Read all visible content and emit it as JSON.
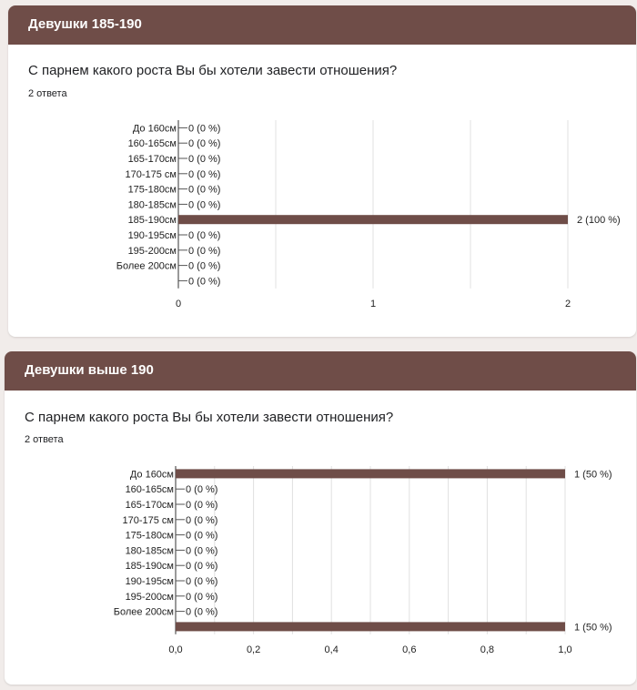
{
  "sections": [
    {
      "title": "Девушки 185-190",
      "question": "С парнем какого роста Вы бы хотели завести отношения?",
      "answers_count": "2 ответа"
    },
    {
      "title": "Девушки выше 190",
      "question": "С парнем какого роста Вы бы хотели завести отношения?",
      "answers_count": "2 ответа"
    }
  ],
  "colors": {
    "header": "#6f4d48",
    "bar": "#6f4d48",
    "grid": "#e0e0e0",
    "background": "#f1ecea"
  },
  "chart_data": [
    {
      "type": "bar",
      "orientation": "horizontal",
      "categories": [
        "До 160см",
        "160-165см",
        "165-170см",
        "170-175 см",
        "175-180см",
        "180-185см",
        "185-190см",
        "190-195см",
        "195-200см",
        "Более 200см",
        ""
      ],
      "values": [
        0,
        0,
        0,
        0,
        0,
        0,
        2,
        0,
        0,
        0,
        0
      ],
      "value_labels": [
        "0 (0 %)",
        "0 (0 %)",
        "0 (0 %)",
        "0 (0 %)",
        "0 (0 %)",
        "0 (0 %)",
        "2 (100 %)",
        "0 (0 %)",
        "0 (0 %)",
        "0 (0 %)",
        "0 (0 %)"
      ],
      "xlim": [
        0,
        2
      ],
      "xticks": [
        "0",
        "1",
        "2"
      ],
      "grid": true
    },
    {
      "type": "bar",
      "orientation": "horizontal",
      "categories": [
        "До 160см",
        "160-165см",
        "165-170см",
        "170-175 см",
        "175-180см",
        "180-185см",
        "185-190см",
        "190-195см",
        "195-200см",
        "Более 200см",
        ""
      ],
      "values": [
        1,
        0,
        0,
        0,
        0,
        0,
        0,
        0,
        0,
        0,
        1
      ],
      "value_labels": [
        "1 (50 %)",
        "0 (0 %)",
        "0 (0 %)",
        "0 (0 %)",
        "0 (0 %)",
        "0 (0 %)",
        "0 (0 %)",
        "0 (0 %)",
        "0 (0 %)",
        "0 (0 %)",
        "1 (50 %)"
      ],
      "xlim": [
        0,
        1
      ],
      "xticks": [
        "0,0",
        "0,2",
        "0,4",
        "0,6",
        "0,8",
        "1,0"
      ],
      "grid": true
    }
  ]
}
